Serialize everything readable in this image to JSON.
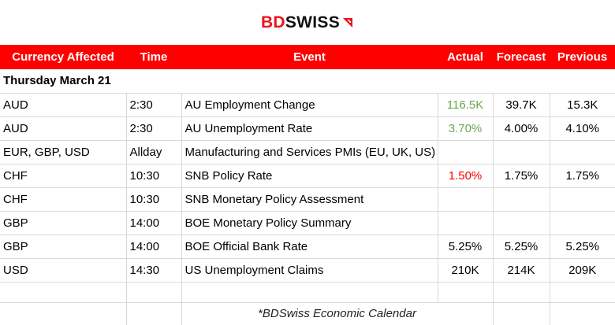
{
  "brand": {
    "part1": "BD",
    "part2": "SWISS"
  },
  "colors": {
    "header_bg": "#ff0000",
    "actual_better": "#6aa84f",
    "actual_worse": "#ff0000"
  },
  "table": {
    "headers": {
      "currency": "Currency Affected",
      "time": "Time",
      "event": "Event",
      "actual": "Actual",
      "forecast": "Forecast",
      "previous": "Previous"
    },
    "date_label": "Thursday March 21",
    "rows": [
      {
        "currency": "AUD",
        "time": "2:30",
        "event": "AU Employment Change",
        "actual": "116.5K",
        "forecast": "39.7K",
        "previous": "15.3K"
      },
      {
        "currency": "AUD",
        "time": "2:30",
        "event": "AU Unemployment Rate",
        "actual": "3.70%",
        "forecast": "4.00%",
        "previous": "4.10%"
      },
      {
        "currency": "EUR, GBP, USD",
        "time": "Allday",
        "event": "Manufacturing and Services PMIs (EU, UK, US)",
        "actual": "",
        "forecast": "",
        "previous": ""
      },
      {
        "currency": "CHF",
        "time": "10:30",
        "event": "SNB Policy Rate",
        "actual": "1.50%",
        "forecast": "1.75%",
        "previous": "1.75%"
      },
      {
        "currency": "CHF",
        "time": "10:30",
        "event": "SNB Monetary Policy Assessment",
        "actual": "",
        "forecast": "",
        "previous": ""
      },
      {
        "currency": "GBP",
        "time": "14:00",
        "event": "BOE Monetary Policy Summary",
        "actual": "",
        "forecast": "",
        "previous": ""
      },
      {
        "currency": "GBP",
        "time": "14:00",
        "event": "BOE Official Bank Rate",
        "actual": "5.25%",
        "forecast": "5.25%",
        "previous": "5.25%"
      },
      {
        "currency": "USD",
        "time": "14:30",
        "event": "US Unemployment Claims",
        "actual": "210K",
        "forecast": "214K",
        "previous": "209K"
      }
    ],
    "caption": "*BDSwiss Economic Calendar"
  }
}
